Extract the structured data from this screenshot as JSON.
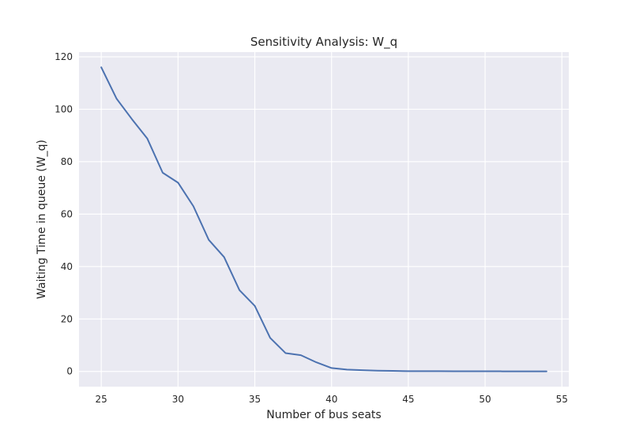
{
  "chart_data": {
    "type": "line",
    "title": "Sensitivity Analysis: W_q",
    "xlabel": "Number of bus seats",
    "ylabel": "Waiting Time in queue (W_q)",
    "xlim": [
      23.55,
      55.45
    ],
    "ylim": [
      -5.8,
      121.8
    ],
    "x_ticks": [
      25,
      30,
      35,
      40,
      45,
      50,
      55
    ],
    "y_ticks": [
      0,
      20,
      40,
      60,
      80,
      100,
      120
    ],
    "grid": true,
    "background": "#eaeaf2",
    "line_color": "#4c72b0",
    "series": [
      {
        "x": [
          25,
          26,
          27,
          28,
          29,
          30,
          31,
          32,
          33,
          34,
          35,
          36,
          37,
          38,
          39,
          40,
          41,
          42,
          43,
          44,
          45,
          46,
          47,
          48,
          49,
          50,
          51,
          52,
          53,
          54
        ],
        "values": [
          116,
          104,
          96.2,
          88.8,
          75.8,
          72,
          63,
          50.2,
          43.6,
          31,
          25,
          12.8,
          7,
          6.2,
          3.5,
          1.3,
          0.7,
          0.5,
          0.3,
          0.2,
          0.1,
          0.1,
          0.1,
          0.05,
          0.05,
          0.05,
          0.05,
          0.02,
          0.02,
          0.02
        ]
      }
    ]
  }
}
